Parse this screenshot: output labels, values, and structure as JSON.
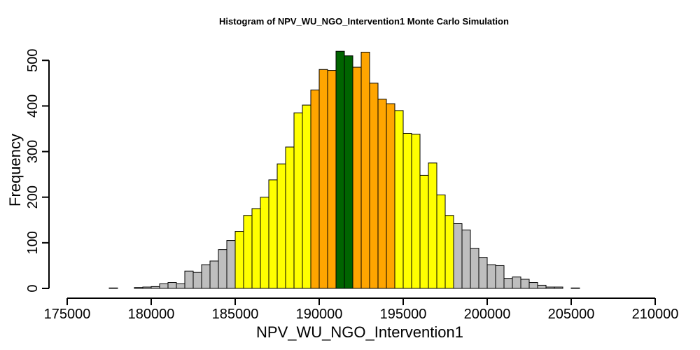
{
  "chart_data": {
    "type": "bar",
    "title": "Histogram of  NPV_WU_NGO_Intervention1  Monte Carlo Simulation",
    "xlabel": "NPV_WU_NGO_Intervention1",
    "ylabel": "Frequency",
    "xlim": [
      175000,
      210000
    ],
    "ylim": [
      0,
      520
    ],
    "x_ticks": [
      175000,
      180000,
      185000,
      190000,
      195000,
      200000,
      205000,
      210000
    ],
    "y_ticks": [
      0,
      100,
      200,
      300,
      400,
      500
    ],
    "x_tick_labels": [
      "175000",
      "180000",
      "185000",
      "190000",
      "195000",
      "200000",
      "205000",
      "210000"
    ],
    "y_tick_labels": [
      "0",
      "100",
      "200",
      "300",
      "400",
      "500"
    ],
    "bin_width": 500,
    "bin_start": 175500,
    "frequencies": [
      0,
      0,
      0,
      0,
      1,
      0,
      0,
      2,
      3,
      4,
      10,
      13,
      10,
      38,
      35,
      52,
      60,
      85,
      105,
      125,
      160,
      175,
      200,
      238,
      273,
      310,
      385,
      402,
      435,
      480,
      478,
      520,
      510,
      485,
      518,
      450,
      415,
      405,
      390,
      340,
      338,
      248,
      275,
      205,
      160,
      142,
      128,
      88,
      68,
      52,
      50,
      22,
      25,
      20,
      13,
      7,
      3,
      3,
      0,
      1,
      0,
      0,
      0,
      0,
      0,
      0,
      0,
      0,
      0,
      0
    ],
    "bin_colors": {
      "outer": "#bebebe",
      "inner_yellow": "#ffff00",
      "inner_orange": "#ffa500",
      "center": "#006400"
    },
    "color_bands": [
      {
        "from": 185000,
        "to": 189500,
        "color": "#ffff00"
      },
      {
        "from": 189500,
        "to": 191000,
        "color": "#ffa500"
      },
      {
        "from": 191000,
        "to": 192000,
        "color": "#006400"
      },
      {
        "from": 192000,
        "to": 194500,
        "color": "#ffa500"
      },
      {
        "from": 194500,
        "to": 198000,
        "color": "#ffff00"
      }
    ],
    "grid": false,
    "legend": "none"
  }
}
